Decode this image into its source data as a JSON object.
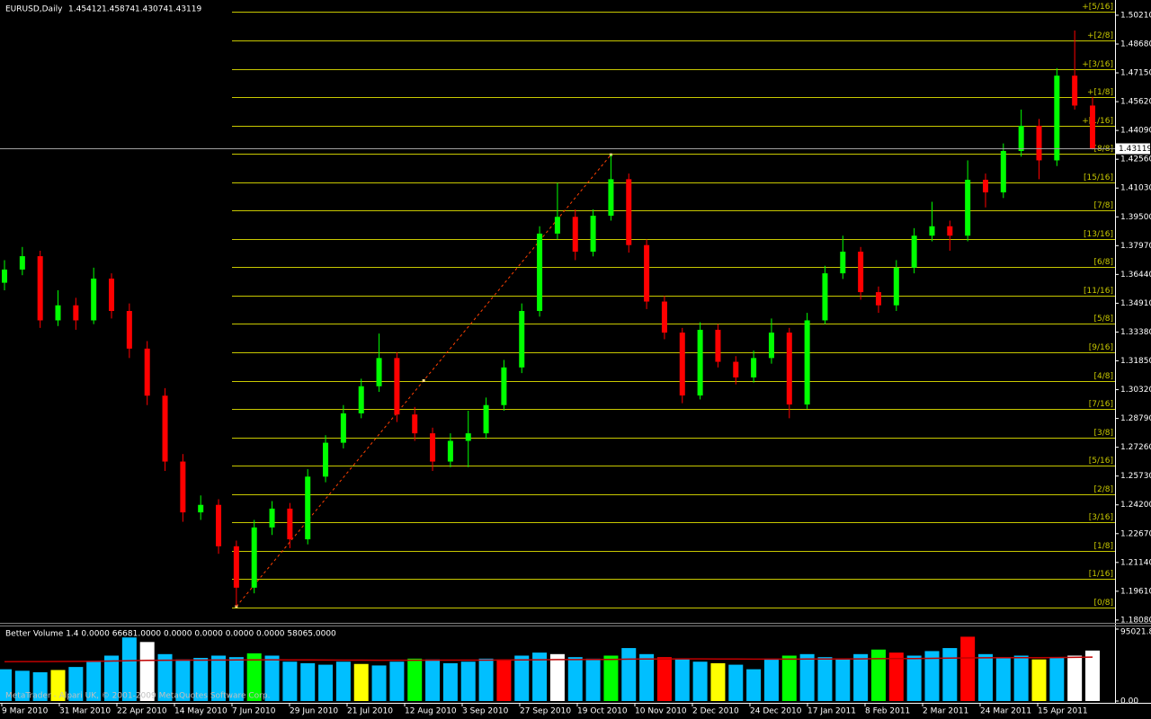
{
  "chart_data": [
    {
      "type": "candlestick",
      "title": "EURUSD,Daily",
      "open": [
        1.36,
        1.367,
        1.3741,
        1.34,
        1.348,
        1.34,
        1.3622,
        1.345,
        1.325,
        1.3,
        1.265,
        1.238,
        1.242,
        1.22,
        1.198,
        1.23,
        1.24,
        1.2237,
        1.257,
        1.275,
        1.2906,
        1.305,
        1.32,
        1.29,
        1.28,
        1.265,
        1.276,
        1.28,
        1.295,
        1.315,
        1.345,
        1.3861,
        1.395,
        1.3765,
        1.3956,
        1.415,
        1.38,
        1.35,
        1.3335,
        1.3001,
        1.335,
        1.318,
        1.3097,
        1.32,
        1.3335,
        1.2953,
        1.34,
        1.365,
        1.3765,
        1.355,
        1.348,
        1.368,
        1.385,
        1.39,
        1.385,
        1.4147,
        1.408,
        1.43,
        1.4434,
        1.425,
        1.47,
        1.45412
      ],
      "high": [
        1.372,
        1.379,
        1.377,
        1.356,
        1.352,
        1.368,
        1.365,
        1.349,
        1.329,
        1.304,
        1.269,
        1.247,
        1.245,
        1.223,
        1.234,
        1.244,
        1.243,
        1.261,
        1.279,
        1.295,
        1.309,
        1.333,
        1.323,
        1.294,
        1.283,
        1.28,
        1.292,
        1.299,
        1.319,
        1.349,
        1.39,
        1.413,
        1.399,
        1.399,
        1.428,
        1.418,
        1.383,
        1.353,
        1.336,
        1.339,
        1.338,
        1.321,
        1.324,
        1.341,
        1.336,
        1.344,
        1.369,
        1.385,
        1.379,
        1.358,
        1.372,
        1.389,
        1.403,
        1.393,
        1.425,
        1.418,
        1.434,
        1.452,
        1.447,
        1.474,
        1.494,
        1.45874
      ],
      "low": [
        1.356,
        1.364,
        1.336,
        1.337,
        1.335,
        1.338,
        1.341,
        1.32,
        1.295,
        1.26,
        1.233,
        1.234,
        1.216,
        1.188,
        1.195,
        1.226,
        1.219,
        1.221,
        1.254,
        1.272,
        1.288,
        1.302,
        1.286,
        1.276,
        1.26,
        1.262,
        1.262,
        1.277,
        1.292,
        1.312,
        1.342,
        1.383,
        1.372,
        1.374,
        1.393,
        1.376,
        1.346,
        1.33,
        1.296,
        1.298,
        1.315,
        1.306,
        1.307,
        1.317,
        1.288,
        1.293,
        1.338,
        1.362,
        1.351,
        1.344,
        1.345,
        1.365,
        1.382,
        1.377,
        1.382,
        1.4,
        1.405,
        1.427,
        1.415,
        1.422,
        1.452,
        1.43074
      ],
      "close": [
        1.367,
        1.3741,
        1.34,
        1.348,
        1.34,
        1.3622,
        1.345,
        1.325,
        1.3,
        1.265,
        1.238,
        1.242,
        1.22,
        1.198,
        1.23,
        1.24,
        1.2237,
        1.257,
        1.275,
        1.2906,
        1.305,
        1.32,
        1.29,
        1.28,
        1.265,
        1.276,
        1.28,
        1.295,
        1.315,
        1.345,
        1.3861,
        1.395,
        1.3765,
        1.3956,
        1.415,
        1.38,
        1.35,
        1.3335,
        1.3001,
        1.335,
        1.318,
        1.3097,
        1.32,
        1.3335,
        1.2953,
        1.34,
        1.365,
        1.3765,
        1.355,
        1.348,
        1.368,
        1.385,
        1.39,
        1.385,
        1.4147,
        1.408,
        1.43,
        1.4434,
        1.425,
        1.47,
        1.45412,
        1.43119
      ],
      "up_color": "#00ff00",
      "down_color": "#ff0000",
      "ylim": [
        1.1798,
        1.5102
      ],
      "yticks": [
        {
          "value": 1.5021,
          "label": "1.50210"
        },
        {
          "value": 1.4868,
          "label": "1.48680"
        },
        {
          "value": 1.4715,
          "label": "1.47150"
        },
        {
          "value": 1.4562,
          "label": "1.45620"
        },
        {
          "value": 1.4409,
          "label": "1.44090"
        },
        {
          "value": 1.4256,
          "label": "1.42560"
        },
        {
          "value": 1.4103,
          "label": "1.41030"
        },
        {
          "value": 1.395,
          "label": "1.39500"
        },
        {
          "value": 1.3797,
          "label": "1.37970"
        },
        {
          "value": 1.3644,
          "label": "1.36440"
        },
        {
          "value": 1.3491,
          "label": "1.34910"
        },
        {
          "value": 1.3338,
          "label": "1.33380"
        },
        {
          "value": 1.3185,
          "label": "1.31850"
        },
        {
          "value": 1.3032,
          "label": "1.30320"
        },
        {
          "value": 1.2879,
          "label": "1.28790"
        },
        {
          "value": 1.2726,
          "label": "1.27260"
        },
        {
          "value": 1.2573,
          "label": "1.25730"
        },
        {
          "value": 1.242,
          "label": "1.24200"
        },
        {
          "value": 1.2267,
          "label": "1.22670"
        },
        {
          "value": 1.2114,
          "label": "1.21140"
        },
        {
          "value": 1.1961,
          "label": "1.19610"
        },
        {
          "value": 1.1808,
          "label": "1.18080"
        }
      ],
      "x_labels": [
        "9 Mar 2010",
        "31 Mar 2010",
        "22 Apr 2010",
        "14 May 2010",
        "7 Jun 2010",
        "29 Jun 2010",
        "21 Jul 2010",
        "12 Aug 2010",
        "3 Sep 2010",
        "27 Sep 2010",
        "19 Oct 2010",
        "10 Nov 2010",
        "2 Dec 2010",
        "24 Dec 2010",
        "17 Jan 2011",
        "8 Feb 2011",
        "2 Mar 2011",
        "24 Mar 2011",
        "15 Apr 2011"
      ],
      "murray_color": "#c8c800",
      "murray_levels": [
        {
          "label": "[0/8]",
          "value": 1.1875
        },
        {
          "label": "[1/16]",
          "value": 1.20256
        },
        {
          "label": "[1/8]",
          "value": 1.21762
        },
        {
          "label": "[3/16]",
          "value": 1.23268
        },
        {
          "label": "[2/8]",
          "value": 1.24774
        },
        {
          "label": "[5/16]",
          "value": 1.2628
        },
        {
          "label": "[3/8]",
          "value": 1.27786
        },
        {
          "label": "[7/16]",
          "value": 1.29292
        },
        {
          "label": "[4/8]",
          "value": 1.30798
        },
        {
          "label": "[9/16]",
          "value": 1.32304
        },
        {
          "label": "[5/8]",
          "value": 1.3381
        },
        {
          "label": "[11/16]",
          "value": 1.35316
        },
        {
          "label": "[6/8]",
          "value": 1.36822
        },
        {
          "label": "[13/16]",
          "value": 1.38328
        },
        {
          "label": "[7/8]",
          "value": 1.39834
        },
        {
          "label": "[15/16]",
          "value": 1.4134
        },
        {
          "label": "[8/8]",
          "value": 1.42846
        },
        {
          "label": "+[1/16]",
          "value": 1.44352
        },
        {
          "label": "+[1/8]",
          "value": 1.45858
        },
        {
          "label": "+[3/16]",
          "value": 1.47364
        },
        {
          "label": "+[2/8]",
          "value": 1.4887
        },
        {
          "label": "+[5/16]",
          "value": 1.50376
        }
      ]
    },
    {
      "type": "bar",
      "title": "Better Volume 1.4 0.0000 66681.0000 0.0000 0.0000 0.0000 0.0000 58065.0000",
      "values": [
        42000,
        40000,
        38000,
        41000,
        45000,
        52000,
        60000,
        84000,
        78000,
        62000,
        55000,
        57000,
        60000,
        58000,
        63000,
        60000,
        52000,
        50000,
        48000,
        52000,
        49000,
        47000,
        52000,
        56000,
        55000,
        50000,
        52000,
        56000,
        55000,
        60000,
        64000,
        62000,
        58000,
        56000,
        60000,
        70000,
        62000,
        58000,
        56000,
        52000,
        50000,
        48000,
        42000,
        55000,
        60000,
        62000,
        58000,
        56000,
        62000,
        68000,
        64000,
        60000,
        66000,
        70000,
        85000,
        62000,
        58000,
        60000,
        55000,
        58000,
        60000,
        66681
      ],
      "colors": [
        "#00bfff",
        "#00bfff",
        "#00bfff",
        "#ffff00",
        "#00bfff",
        "#00bfff",
        "#00bfff",
        "#00bfff",
        "#ffffff",
        "#00bfff",
        "#00bfff",
        "#00bfff",
        "#00bfff",
        "#00bfff",
        "#00ff00",
        "#00bfff",
        "#00bfff",
        "#00bfff",
        "#00bfff",
        "#00bfff",
        "#ffff00",
        "#00bfff",
        "#00bfff",
        "#00ff00",
        "#00bfff",
        "#00bfff",
        "#00bfff",
        "#00bfff",
        "#ff0000",
        "#00bfff",
        "#00bfff",
        "#ffffff",
        "#00bfff",
        "#00bfff",
        "#00ff00",
        "#00bfff",
        "#00bfff",
        "#ff0000",
        "#00bfff",
        "#00bfff",
        "#ffff00",
        "#00bfff",
        "#00bfff",
        "#00bfff",
        "#00ff00",
        "#00bfff",
        "#00bfff",
        "#00bfff",
        "#00bfff",
        "#00ff00",
        "#ff0000",
        "#00bfff",
        "#00bfff",
        "#00bfff",
        "#ff0000",
        "#00bfff",
        "#00bfff",
        "#00bfff",
        "#ffff00",
        "#00bfff",
        "#ffffff",
        "#ffffff"
      ],
      "ma_values": [
        52000,
        52100,
        52200,
        52300,
        52400,
        52600,
        52800,
        53300,
        53700,
        53900,
        54000,
        54100,
        54200,
        54300,
        54400,
        54500,
        54400,
        54300,
        54200,
        54100,
        54000,
        53900,
        53900,
        53900,
        54000,
        54000,
        54000,
        54100,
        54200,
        54300,
        54500,
        54700,
        54800,
        54900,
        55000,
        55300,
        55500,
        55600,
        55700,
        55700,
        55600,
        55500,
        55300,
        55300,
        55400,
        55500,
        55600,
        55600,
        55700,
        55900,
        56100,
        56200,
        56400,
        56600,
        57000,
        57100,
        57200,
        57300,
        57400,
        57500,
        57700,
        58065
      ],
      "ma_color": "#c00000",
      "ylim": [
        0,
        95021.85
      ],
      "yticks": [
        95021.85,
        {
          "value": 0,
          "label": "0.00"
        }
      ],
      "annotation": "MetaTrader - Alpari UK, © 2001-2009 MetaQuotes Software Corp."
    }
  ]
}
